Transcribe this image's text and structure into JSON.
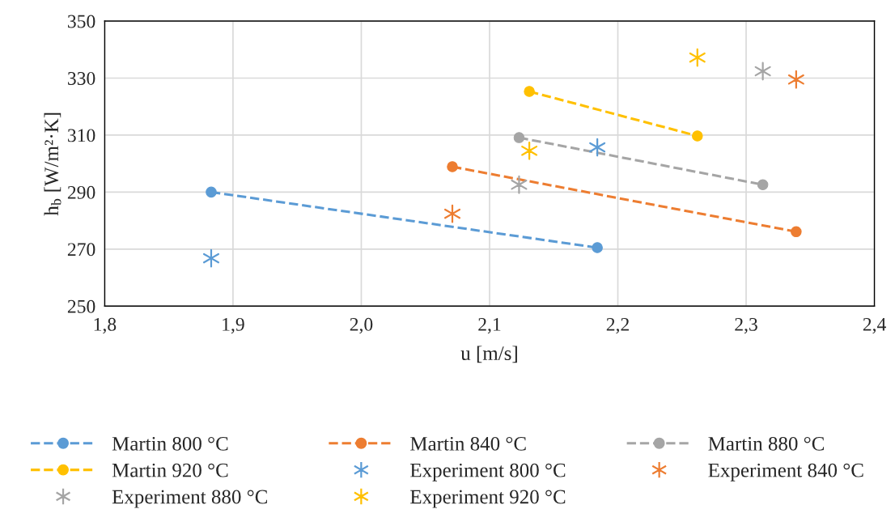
{
  "chart_data": {
    "type": "line",
    "xlabel": "u [m/s]",
    "ylabel": "h$_{b}$ [W/m²·K]",
    "xlim": [
      1.8,
      2.4
    ],
    "xticks": [
      {
        "value": 1.8,
        "label": "1,8"
      },
      {
        "value": 1.9,
        "label": "1,9"
      },
      {
        "value": 2.0,
        "label": "2,0"
      },
      {
        "value": 2.1,
        "label": "2,1"
      },
      {
        "value": 2.2,
        "label": "2,2"
      },
      {
        "value": 2.3,
        "label": "2,3"
      },
      {
        "value": 2.4,
        "label": "2,4"
      }
    ],
    "ylim": [
      250,
      350
    ],
    "yticks": [
      250,
      270,
      290,
      310,
      330,
      350
    ],
    "grid": true,
    "legend": "bottom",
    "series": [
      {
        "name": "Martin 800 °C",
        "color": "#5b9bd5",
        "marker": "circle",
        "line_style": "dashed",
        "x": [
          1.883,
          2.184
        ],
        "values": [
          290,
          270.5
        ]
      },
      {
        "name": "Martin 840 °C",
        "color": "#ed7d31",
        "marker": "circle",
        "line_style": "dashed",
        "x": [
          2.071,
          2.339
        ],
        "values": [
          298.9,
          276.1
        ]
      },
      {
        "name": "Martin 880 °C",
        "color": "#a5a5a5",
        "marker": "circle",
        "line_style": "dashed",
        "x": [
          2.123,
          2.313
        ],
        "values": [
          309.1,
          292.6
        ]
      },
      {
        "name": "Martin 920 °C",
        "color": "#ffc000",
        "marker": "circle",
        "line_style": "dashed",
        "x": [
          2.131,
          2.262
        ],
        "values": [
          325.3,
          309.7
        ]
      },
      {
        "name": "Experiment 800 °C",
        "type": "scatter",
        "color": "#5b9bd5",
        "marker": "cross",
        "x": [
          1.883,
          2.184
        ],
        "values": [
          266.8,
          305.7
        ]
      },
      {
        "name": "Experiment 840 °C",
        "type": "scatter",
        "color": "#ed7d31",
        "marker": "cross",
        "x": [
          2.071,
          2.339
        ],
        "values": [
          282.4,
          329.5
        ]
      },
      {
        "name": "Experiment 880 °C",
        "type": "scatter",
        "color": "#a5a5a5",
        "marker": "cross",
        "x": [
          2.123,
          2.313
        ],
        "values": [
          292.6,
          332.4
        ]
      },
      {
        "name": "Experiment 920 °C",
        "type": "scatter",
        "color": "#ffc000",
        "marker": "cross",
        "x": [
          2.131,
          2.262
        ],
        "values": [
          304.5,
          337.2
        ]
      }
    ]
  }
}
